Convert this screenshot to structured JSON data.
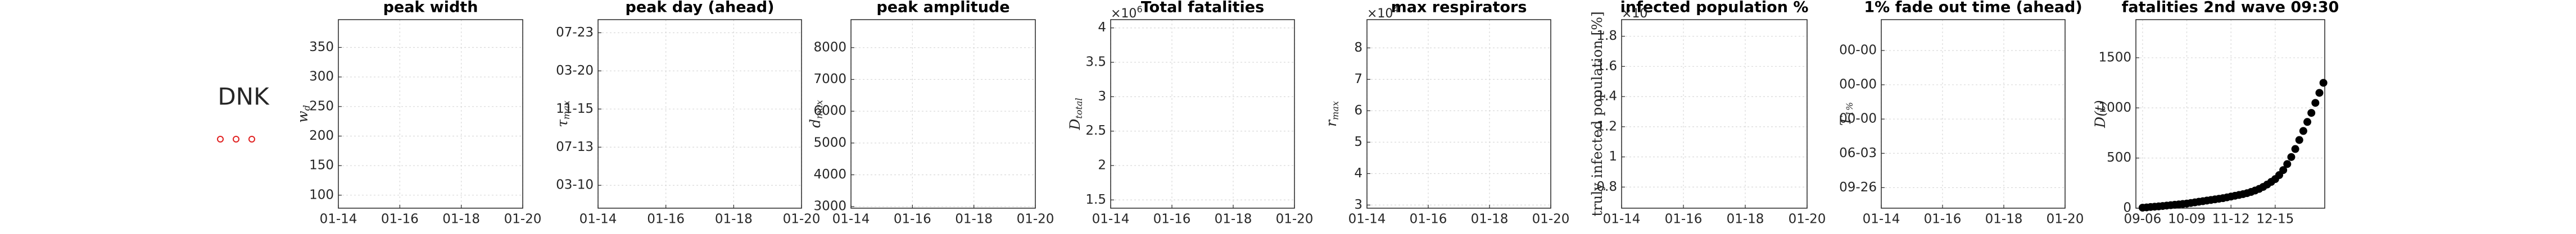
{
  "country": "DNK",
  "chart_data": [
    {
      "type": "line",
      "title": "peak width",
      "ylabel": "w",
      "ylabel_sub": "d",
      "xlim": [
        0,
        6
      ],
      "xticks": [
        {
          "value": 0,
          "label": "01-14"
        },
        {
          "value": 2,
          "label": "01-16"
        },
        {
          "value": 4,
          "label": "01-18"
        },
        {
          "value": 6,
          "label": "01-20"
        }
      ],
      "ylim": [
        78,
        397
      ],
      "yticks": [
        100,
        150,
        200,
        250,
        300,
        350
      ],
      "grid": true
    },
    {
      "type": "line",
      "title": "peak day (ahead)",
      "ylabel": "τ",
      "ylabel_sub": "max",
      "xlim": [
        0,
        6
      ],
      "xticks": [
        {
          "value": 0,
          "label": "01-14"
        },
        {
          "value": 2,
          "label": "01-16"
        },
        {
          "value": 4,
          "label": "01-18"
        },
        {
          "value": 6,
          "label": "01-20"
        }
      ],
      "ylim": [
        -75,
        543
      ],
      "yticks": [
        {
          "value": 0,
          "label": "03-10"
        },
        {
          "value": 125,
          "label": "07-13"
        },
        {
          "value": 250,
          "label": "11-15"
        },
        {
          "value": 375,
          "label": "03-20"
        },
        {
          "value": 500,
          "label": "07-23"
        }
      ],
      "grid": true
    },
    {
      "type": "line",
      "title": "peak amplitude",
      "ylabel": "d",
      "ylabel_sub": "max",
      "xlim": [
        0,
        6
      ],
      "xticks": [
        {
          "value": 0,
          "label": "01-14"
        },
        {
          "value": 2,
          "label": "01-16"
        },
        {
          "value": 4,
          "label": "01-18"
        },
        {
          "value": 6,
          "label": "01-20"
        }
      ],
      "ylim": [
        2950,
        8880
      ],
      "yticks": [
        3000,
        4000,
        5000,
        6000,
        7000,
        8000
      ],
      "grid": true
    },
    {
      "type": "line",
      "title": "Total fatalities",
      "ylabel": "D",
      "ylabel_sub": "total",
      "multiplier": "×10",
      "multiplier_exp": "6",
      "xlim": [
        0,
        6
      ],
      "xticks": [
        {
          "value": 0,
          "label": "01-14"
        },
        {
          "value": 2,
          "label": "01-16"
        },
        {
          "value": 4,
          "label": "01-18"
        },
        {
          "value": 6,
          "label": "01-20"
        }
      ],
      "ylim": [
        1.38,
        4.12
      ],
      "yticks": [
        1.5,
        2,
        2.5,
        3,
        3.5,
        4
      ],
      "grid": true
    },
    {
      "type": "line",
      "title": "max respirators",
      "ylabel": "r",
      "ylabel_sub": "max",
      "multiplier": "×10",
      "multiplier_exp": "4",
      "xlim": [
        0,
        6
      ],
      "xticks": [
        {
          "value": 0,
          "label": "01-14"
        },
        {
          "value": 2,
          "label": "01-16"
        },
        {
          "value": 4,
          "label": "01-18"
        },
        {
          "value": 6,
          "label": "01-20"
        }
      ],
      "ylim": [
        2.9,
        8.9
      ],
      "yticks": [
        3,
        4,
        5,
        6,
        7,
        8
      ],
      "grid": true
    },
    {
      "type": "line",
      "title": "infected population %",
      "ylabel": "truly infected population [%]",
      "multiplier": "×10",
      "xlim": [
        0,
        6
      ],
      "xticks": [
        {
          "value": 0,
          "label": "01-14"
        },
        {
          "value": 2,
          "label": "01-16"
        },
        {
          "value": 4,
          "label": "01-18"
        },
        {
          "value": 6,
          "label": "01-20"
        }
      ],
      "ylim": [
        0.66,
        1.91
      ],
      "yticks": [
        0.8,
        1,
        1.2,
        1.4,
        1.6,
        1.8
      ],
      "grid": true
    },
    {
      "type": "line",
      "title": "1% fade out time (ahead)",
      "ylabel": "T",
      "ylabel_sub": "1%",
      "xlim": [
        0,
        6
      ],
      "xticks": [
        {
          "value": 0,
          "label": "01-14"
        },
        {
          "value": 2,
          "label": "01-16"
        },
        {
          "value": 4,
          "label": "01-18"
        },
        {
          "value": 6,
          "label": "01-20"
        }
      ],
      "ylim": [
        -0.6,
        4.9
      ],
      "yticks": [
        {
          "value": 0,
          "label": "09-26"
        },
        {
          "value": 1,
          "label": "06-03"
        },
        {
          "value": 2,
          "label": "00-00"
        },
        {
          "value": 3,
          "label": "00-00"
        },
        {
          "value": 4,
          "label": "00-00"
        }
      ],
      "grid": true
    },
    {
      "type": "scatter",
      "title": "fatalities 2nd wave 09:30",
      "ylabel": "D(t)",
      "color": "#000000",
      "xlim": [
        -5,
        136
      ],
      "xticks": [
        {
          "value": 0,
          "label": "09-06"
        },
        {
          "value": 33,
          "label": "10-09"
        },
        {
          "value": 66,
          "label": "11-12"
        },
        {
          "value": 99,
          "label": "12-15"
        }
      ],
      "ylim": [
        0,
        1880
      ],
      "yticks": [
        0,
        500,
        1000,
        1500
      ],
      "grid": true,
      "x": [
        0,
        3,
        6,
        9,
        12,
        15,
        18,
        21,
        24,
        27,
        30,
        33,
        36,
        39,
        42,
        45,
        48,
        51,
        54,
        57,
        60,
        63,
        66,
        69,
        72,
        75,
        78,
        81,
        84,
        87,
        90,
        93,
        96,
        99,
        102,
        105,
        108,
        111,
        114,
        117,
        120,
        123,
        126,
        129,
        132,
        135
      ],
      "values": [
        5,
        8,
        12,
        15,
        18,
        22,
        26,
        30,
        34,
        38,
        42,
        46,
        52,
        58,
        64,
        70,
        76,
        82,
        88,
        94,
        100,
        108,
        116,
        124,
        132,
        140,
        150,
        162,
        176,
        192,
        212,
        236,
        262,
        290,
        330,
        380,
        440,
        510,
        590,
        680,
        770,
        860,
        950,
        1050,
        1150,
        1250
      ]
    }
  ]
}
